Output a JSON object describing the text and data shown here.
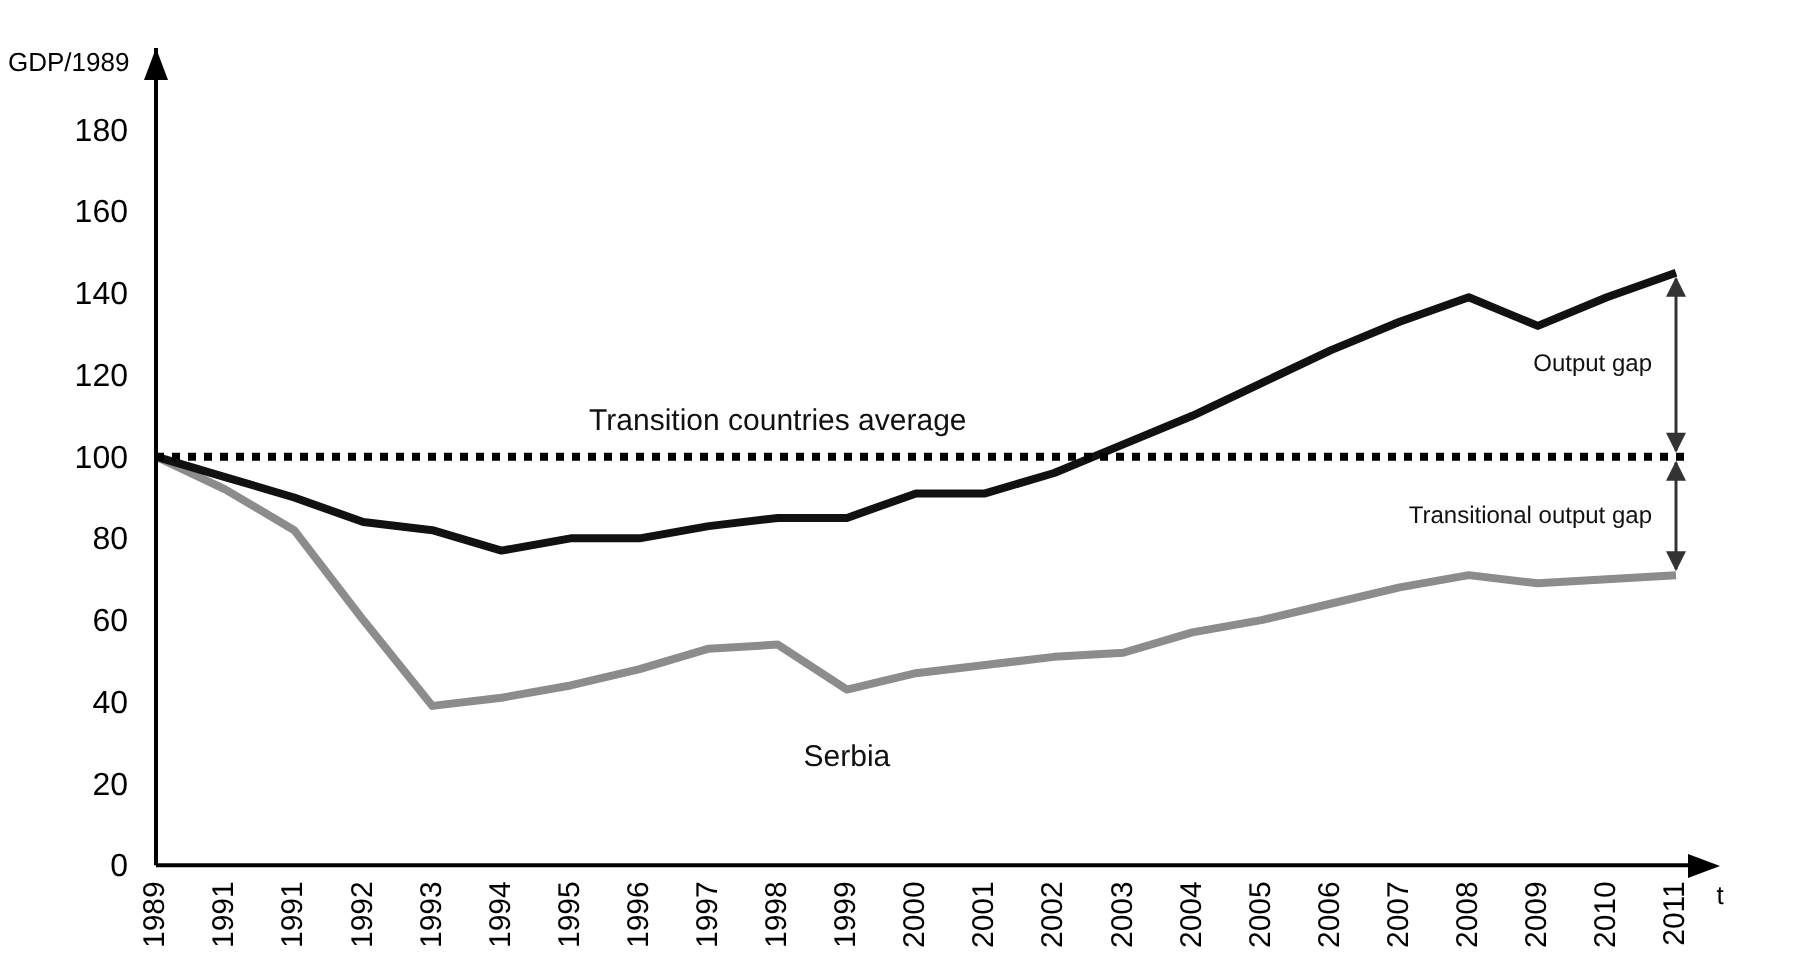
{
  "chart_data": {
    "type": "line",
    "xlabel": "t",
    "ylabel": "GDP/1989",
    "categories": [
      "1989",
      "1991",
      "1991",
      "1992",
      "1993",
      "1994",
      "1995",
      "1996",
      "1997",
      "1998",
      "1999",
      "2000",
      "2001",
      "2002",
      "2003",
      "2004",
      "2005",
      "2006",
      "2007",
      "2008",
      "2009",
      "2010",
      "2011"
    ],
    "series": [
      {
        "name": "Transition countries average",
        "color": "#111111",
        "values": [
          100,
          95,
          90,
          84,
          82,
          77,
          80,
          80,
          83,
          85,
          85,
          91,
          91,
          96,
          103,
          110,
          118,
          126,
          133,
          139,
          132,
          139,
          145
        ]
      },
      {
        "name": "Serbia",
        "color": "#8c8c8c",
        "values": [
          100,
          92,
          82,
          60,
          39,
          41,
          44,
          48,
          53,
          54,
          43,
          47,
          49,
          51,
          52,
          57,
          60,
          64,
          68,
          71,
          69,
          70,
          71
        ]
      }
    ],
    "ylim": [
      0,
      200
    ],
    "yticks": [
      0,
      20,
      40,
      60,
      80,
      100,
      120,
      140,
      160,
      180
    ],
    "ref_lines": [
      {
        "axis": "y",
        "value": 100,
        "color": "#000000",
        "line_style": "dotted"
      }
    ],
    "annotations": [
      "Output gap",
      "Transitional output gap"
    ],
    "grid": false,
    "legend": false,
    "marker": "none",
    "line_style": "solid"
  }
}
